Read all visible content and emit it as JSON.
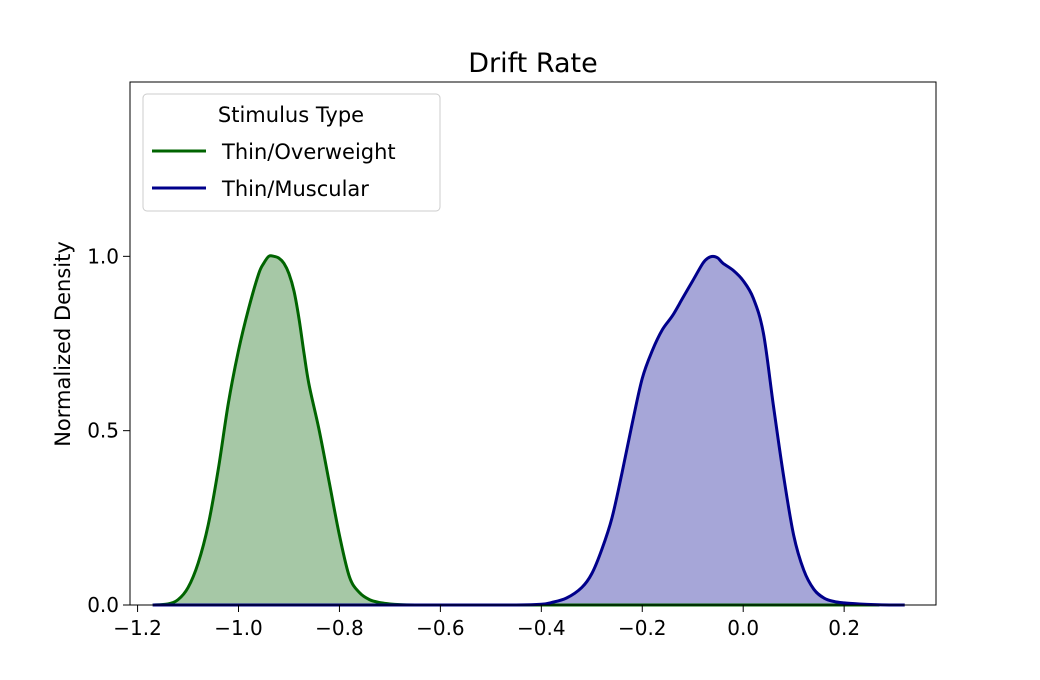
{
  "chart_data": {
    "type": "area",
    "title": "Drift Rate",
    "xlabel": "",
    "ylabel": "Normalized Density",
    "xlim": [
      -1.215,
      0.382
    ],
    "ylim": [
      0,
      1.5
    ],
    "x_ticks": [
      -1.2,
      -1.0,
      -0.8,
      -0.6,
      -0.4,
      -0.2,
      0.0,
      0.2
    ],
    "x_tick_labels": [
      "−1.2",
      "−1.0",
      "−0.8",
      "−0.6",
      "−0.4",
      "−0.2",
      "0.0",
      "0.2"
    ],
    "y_ticks": [
      0.0,
      0.5,
      1.0
    ],
    "y_tick_labels": [
      "0.0",
      "0.5",
      "1.0"
    ],
    "grid": false,
    "legend": {
      "title": "Stimulus Type",
      "placement": "top-left"
    },
    "series": [
      {
        "name": "Thin/Overweight",
        "color": "#006400",
        "fill": "#a6c8a6",
        "x": [
          -1.17,
          -1.14,
          -1.12,
          -1.1,
          -1.08,
          -1.06,
          -1.04,
          -1.02,
          -1.0,
          -0.98,
          -0.96,
          -0.95,
          -0.94,
          -0.93,
          -0.92,
          -0.91,
          -0.9,
          -0.89,
          -0.88,
          -0.87,
          -0.86,
          -0.84,
          -0.82,
          -0.8,
          -0.78,
          -0.76,
          -0.74,
          -0.72,
          -0.7,
          -0.68,
          -0.65,
          -0.62,
          -0.55,
          -0.45,
          -0.35,
          -0.2,
          0.0,
          0.2,
          0.27
        ],
        "y": [
          0.0,
          0.003,
          0.015,
          0.05,
          0.12,
          0.23,
          0.39,
          0.58,
          0.73,
          0.85,
          0.95,
          0.98,
          1.0,
          1.0,
          0.995,
          0.98,
          0.95,
          0.9,
          0.82,
          0.72,
          0.63,
          0.5,
          0.35,
          0.2,
          0.08,
          0.035,
          0.015,
          0.007,
          0.003,
          0.001,
          0.0,
          0.0,
          0.0,
          0.0,
          0.0,
          0.0,
          0.0,
          0.0,
          0.0
        ]
      },
      {
        "name": "Thin/Muscular",
        "color": "#00008b",
        "fill": "#a6a6d8",
        "x": [
          -1.17,
          -0.8,
          -0.6,
          -0.45,
          -0.4,
          -0.38,
          -0.35,
          -0.32,
          -0.3,
          -0.28,
          -0.26,
          -0.24,
          -0.22,
          -0.2,
          -0.18,
          -0.16,
          -0.14,
          -0.12,
          -0.1,
          -0.08,
          -0.07,
          -0.06,
          -0.05,
          -0.04,
          -0.02,
          0.0,
          0.02,
          0.04,
          0.06,
          0.08,
          0.1,
          0.12,
          0.14,
          0.16,
          0.18,
          0.2,
          0.23,
          0.26,
          0.29,
          0.32
        ],
        "y": [
          0.0,
          0.0,
          0.0,
          0.0,
          0.002,
          0.007,
          0.02,
          0.05,
          0.09,
          0.16,
          0.25,
          0.38,
          0.52,
          0.65,
          0.73,
          0.79,
          0.83,
          0.88,
          0.93,
          0.98,
          0.995,
          1.0,
          0.995,
          0.98,
          0.96,
          0.93,
          0.88,
          0.78,
          0.57,
          0.37,
          0.2,
          0.1,
          0.045,
          0.02,
          0.01,
          0.006,
          0.003,
          0.001,
          0.0,
          0.0
        ]
      }
    ]
  }
}
